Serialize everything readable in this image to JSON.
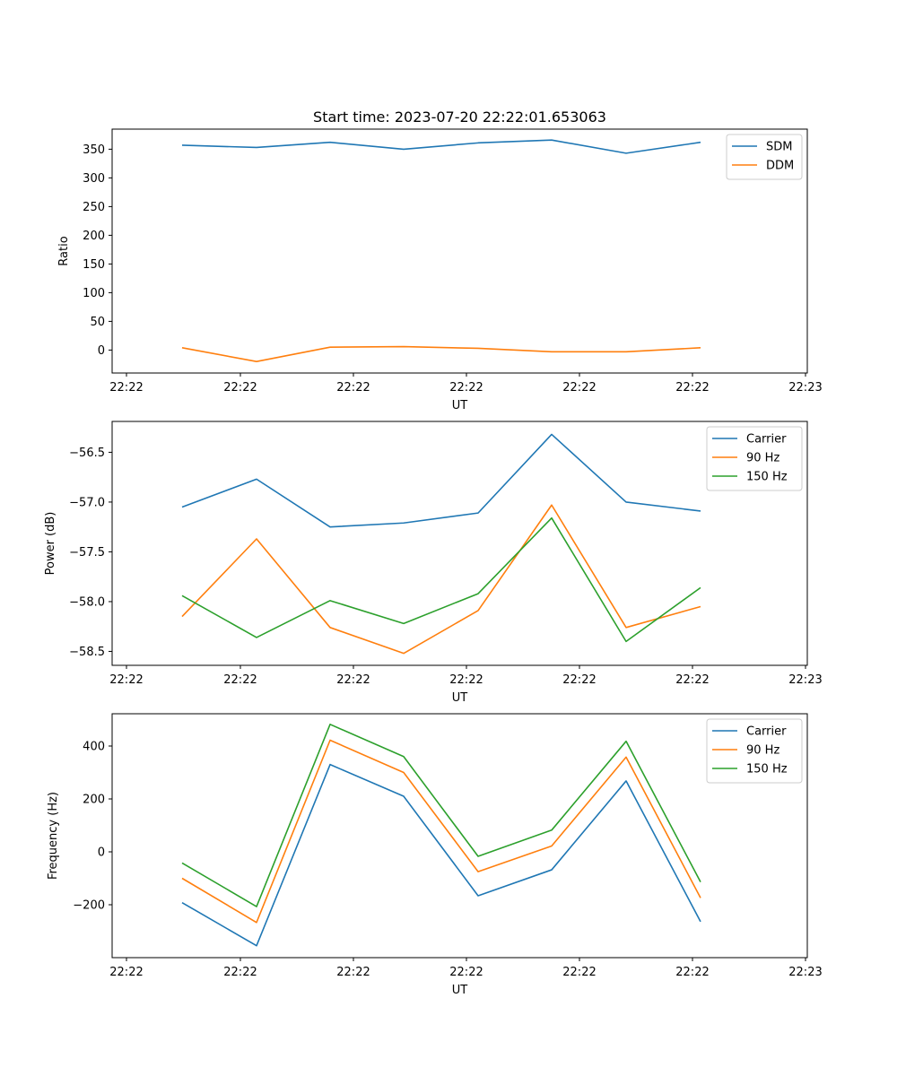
{
  "chart_data": [
    {
      "type": "line",
      "title": "Start time: 2023-07-20 22:22:01.653063",
      "xlabel": "UT",
      "ylabel": "Ratio",
      "x_tick_labels": [
        "22:22",
        "22:22",
        "22:22",
        "22:22",
        "22:22",
        "22:22",
        "22:23"
      ],
      "ylim": [
        -40,
        385
      ],
      "y_ticks": [
        0,
        50,
        100,
        150,
        200,
        250,
        300,
        350
      ],
      "y_tick_labels": [
        "0",
        "50",
        "100",
        "150",
        "200",
        "250",
        "300",
        "350"
      ],
      "grid": false,
      "legend_position": "top-right",
      "series": [
        {
          "name": "SDM",
          "color": "#1f77b4",
          "values": [
            357,
            353,
            362,
            350,
            361,
            366,
            343,
            362
          ]
        },
        {
          "name": "DDM",
          "color": "#ff7f0e",
          "values": [
            4,
            -20,
            5,
            6,
            3,
            -3,
            -3,
            4
          ]
        }
      ]
    },
    {
      "type": "line",
      "title": "",
      "xlabel": "UT",
      "ylabel": "Power (dB)",
      "x_tick_labels": [
        "22:22",
        "22:22",
        "22:22",
        "22:22",
        "22:22",
        "22:22",
        "22:23"
      ],
      "ylim": [
        -58.64,
        -56.19
      ],
      "y_ticks": [
        -58.5,
        -58.0,
        -57.5,
        -57.0,
        -56.5
      ],
      "y_tick_labels": [
        "−58.5",
        "−58.0",
        "−57.5",
        "−57.0",
        "−56.5"
      ],
      "grid": false,
      "legend_position": "top-right",
      "series": [
        {
          "name": "Carrier",
          "color": "#1f77b4",
          "values": [
            -57.05,
            -56.77,
            -57.25,
            -57.21,
            -57.11,
            -56.32,
            -57.0,
            -57.09
          ]
        },
        {
          "name": "90 Hz",
          "color": "#ff7f0e",
          "values": [
            -58.15,
            -57.37,
            -58.26,
            -58.52,
            -58.09,
            -57.03,
            -58.26,
            -58.05
          ]
        },
        {
          "name": "150 Hz",
          "color": "#2ca02c",
          "values": [
            -57.94,
            -58.36,
            -57.99,
            -58.22,
            -57.92,
            -57.16,
            -58.4,
            -57.86
          ]
        }
      ]
    },
    {
      "type": "line",
      "title": "",
      "xlabel": "UT",
      "ylabel": "Frequency (Hz)",
      "x_tick_labels": [
        "22:22",
        "22:22",
        "22:22",
        "22:22",
        "22:22",
        "22:22",
        "22:23"
      ],
      "ylim": [
        -400,
        522
      ],
      "y_ticks": [
        -200,
        0,
        200,
        400
      ],
      "y_tick_labels": [
        "−200",
        "0",
        "200",
        "400"
      ],
      "grid": false,
      "legend_position": "top-right",
      "series": [
        {
          "name": "Carrier",
          "color": "#1f77b4",
          "values": [
            -192,
            -355,
            330,
            210,
            -166,
            -68,
            268,
            -264
          ]
        },
        {
          "name": "90 Hz",
          "color": "#ff7f0e",
          "values": [
            -100,
            -267,
            422,
            300,
            -75,
            22,
            358,
            -174
          ]
        },
        {
          "name": "150 Hz",
          "color": "#2ca02c",
          "values": [
            -42,
            -207,
            482,
            360,
            -17,
            82,
            418,
            -114
          ]
        }
      ]
    }
  ]
}
